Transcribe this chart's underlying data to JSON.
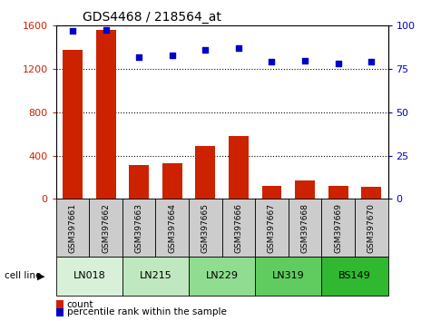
{
  "title": "GDS4468 / 218564_at",
  "samples": [
    "GSM397661",
    "GSM397662",
    "GSM397663",
    "GSM397664",
    "GSM397665",
    "GSM397666",
    "GSM397667",
    "GSM397668",
    "GSM397669",
    "GSM397670"
  ],
  "counts": [
    1380,
    1560,
    310,
    330,
    490,
    580,
    120,
    175,
    120,
    115
  ],
  "percentile_ranks": [
    97,
    97.5,
    82,
    83,
    86,
    87,
    79,
    80,
    78,
    79
  ],
  "cell_lines": [
    {
      "name": "LN018",
      "samples": [
        0,
        1
      ],
      "color": "#d8f0d8"
    },
    {
      "name": "LN215",
      "samples": [
        2,
        3
      ],
      "color": "#c0e8c0"
    },
    {
      "name": "LN229",
      "samples": [
        4,
        5
      ],
      "color": "#90dc90"
    },
    {
      "name": "LN319",
      "samples": [
        6,
        7
      ],
      "color": "#60cc60"
    },
    {
      "name": "BS149",
      "samples": [
        8,
        9
      ],
      "color": "#30b830"
    }
  ],
  "bar_color": "#cc2200",
  "dot_color": "#0000cc",
  "left_ylim": [
    0,
    1600
  ],
  "left_yticks": [
    0,
    400,
    800,
    1200,
    1600
  ],
  "right_ylim": [
    0,
    100
  ],
  "right_yticks": [
    0,
    25,
    50,
    75,
    100
  ],
  "background_color": "#ffffff",
  "bar_width": 0.6,
  "label_count": "count",
  "label_percentile": "percentile rank within the sample",
  "cell_line_label": "cell line",
  "xtick_bg_color": "#cccccc",
  "grid_yticks": [
    400,
    800,
    1200
  ]
}
